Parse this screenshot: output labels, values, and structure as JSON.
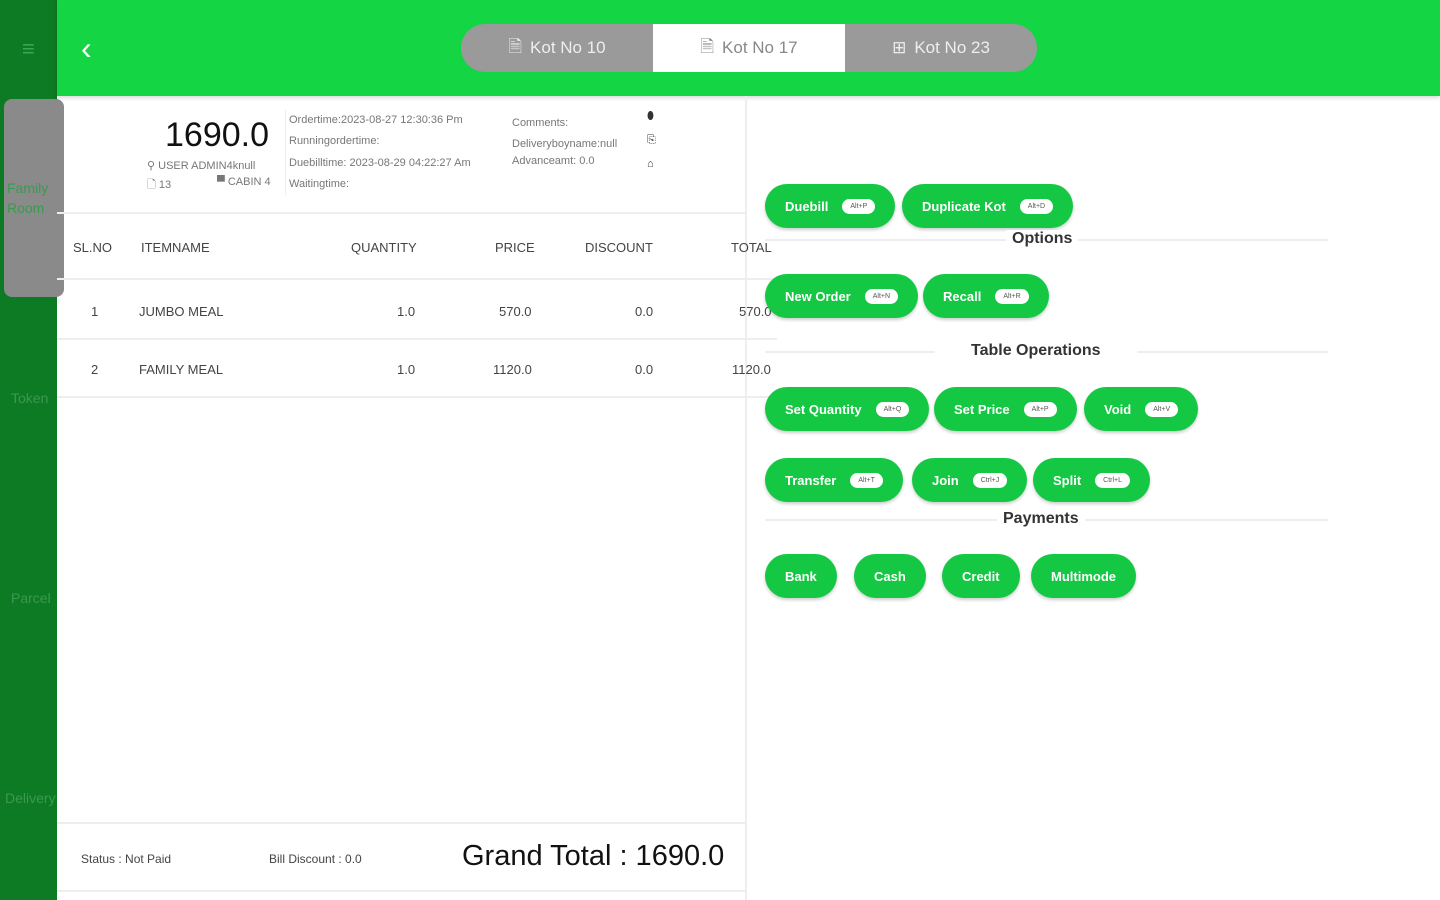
{
  "sidebar": {
    "items": [
      {
        "label": "Family Room"
      },
      {
        "label": "Token"
      },
      {
        "label": "Parcel"
      },
      {
        "label": "Delivery"
      }
    ]
  },
  "header": {
    "tabs": [
      {
        "label": "Kot No 10",
        "icon": "document-icon"
      },
      {
        "label": "Kot No 17",
        "icon": "document-icon"
      },
      {
        "label": "Kot No 23",
        "icon": "grid-icon"
      }
    ],
    "active_tab": 1
  },
  "summary": {
    "amount": "1690.0",
    "user": "USER ADMIN4knull",
    "kot": "13",
    "table": "CABIN 4",
    "ordertime": "Ordertime:2023-08-27 12:30:36 Pm",
    "runningordertime": "Runningordertime:",
    "duebilltime": "Duebilltime: 2023-08-29 04:22:27 Am",
    "waitingtime": "Waitingtime:",
    "comments": "Comments:",
    "deliveryboy": "Deliveryboyname:null",
    "advance": "Advanceamt: 0.0"
  },
  "table": {
    "headers": [
      "SL.NO",
      "ITEMNAME",
      "QUANTITY",
      "PRICE",
      "DISCOUNT",
      "TOTAL"
    ],
    "rows": [
      [
        "1",
        "JUMBO MEAL",
        "1.0",
        "570.0",
        "0.0",
        "570.0"
      ],
      [
        "2",
        "FAMILY MEAL",
        "1.0",
        "1120.0",
        "0.0",
        "1120.0"
      ]
    ]
  },
  "footer": {
    "status": "Status : Not Paid",
    "bill_discount": "Bill Discount : 0.0",
    "grand_total": "Grand Total : 1690.0"
  },
  "actions": {
    "top": [
      {
        "label": "Duebill",
        "key": "Alt+P"
      },
      {
        "label": "Duplicate Kot",
        "key": "Alt+D"
      }
    ],
    "options_label": "Options",
    "options": [
      {
        "label": "New Order",
        "key": "Alt+N"
      },
      {
        "label": "Recall",
        "key": "Alt+R"
      }
    ],
    "table_ops_label": "Table Operations",
    "table_ops": [
      {
        "label": "Set Quantity",
        "key": "Alt+Q"
      },
      {
        "label": "Set Price",
        "key": "Alt+P"
      },
      {
        "label": "Void",
        "key": "Alt+V"
      },
      {
        "label": "Transfer",
        "key": "Alt+T"
      },
      {
        "label": "Join",
        "key": "Ctrl+J"
      },
      {
        "label": "Split",
        "key": "Ctrl+L"
      }
    ],
    "payments_label": "Payments",
    "payments": [
      {
        "label": "Bank"
      },
      {
        "label": "Cash"
      },
      {
        "label": "Credit"
      },
      {
        "label": "Multimode"
      }
    ]
  },
  "colors": {
    "header": "#14d543",
    "sidebar": "#0d7a24",
    "button": "#14c843"
  }
}
